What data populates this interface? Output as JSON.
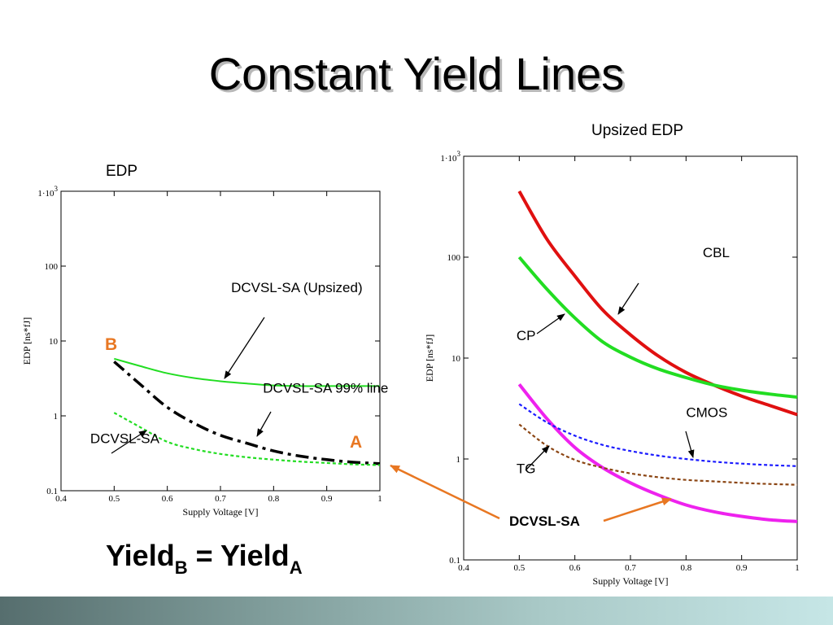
{
  "slide": {
    "title": "Constant Yield Lines",
    "equation": {
      "lhs": "Yield",
      "lhs_sub": "B",
      "op": " = ",
      "rhs": "Yield",
      "rhs_sub": "A"
    },
    "bottom_label": "DCVSL-SA",
    "colors": {
      "arrow": "#e87722",
      "footer_start": "#566e6e",
      "footer_end": "#c6e6e6"
    }
  },
  "chart_data": [
    {
      "type": "line",
      "caption": "EDP",
      "xlabel": "Supply Voltage [V]",
      "ylabel": "EDP [ns*fJ]",
      "xlim": [
        0.4,
        1.0
      ],
      "ylim": [
        0.1,
        1000
      ],
      "yscale": "log",
      "xticks": [
        "0.4",
        "0.5",
        "0.6",
        "0.7",
        "0.8",
        "0.9",
        "1"
      ],
      "yticks": [
        {
          "label": "0.1",
          "value": 0.1
        },
        {
          "label": "1",
          "value": 1
        },
        {
          "label": "10",
          "value": 10
        },
        {
          "label": "100",
          "value": 100
        },
        {
          "label": "1·10",
          "sup": "3",
          "value": 1000
        }
      ],
      "series": [
        {
          "id": "upsized",
          "color": "#22dd22",
          "style": "solid",
          "x": [
            0.5,
            0.55,
            0.6,
            0.65,
            0.7,
            0.75,
            0.8,
            0.85,
            0.9,
            0.95,
            1.0
          ],
          "y": [
            5.8,
            4.6,
            3.7,
            3.2,
            2.9,
            2.7,
            2.55,
            2.5,
            2.5,
            2.5,
            2.5
          ]
        },
        {
          "id": "line99",
          "color": "#000000",
          "style": "dashdot",
          "x": [
            0.5,
            0.55,
            0.6,
            0.65,
            0.7,
            0.75,
            0.8,
            0.85,
            0.9,
            0.95,
            1.0
          ],
          "y": [
            5.3,
            2.6,
            1.3,
            0.8,
            0.55,
            0.43,
            0.34,
            0.29,
            0.26,
            0.24,
            0.23
          ]
        },
        {
          "id": "base",
          "color": "#22dd22",
          "style": "dotted",
          "x": [
            0.5,
            0.55,
            0.6,
            0.65,
            0.7,
            0.75,
            0.8,
            0.85,
            0.9,
            0.95,
            1.0
          ],
          "y": [
            1.1,
            0.7,
            0.45,
            0.36,
            0.31,
            0.28,
            0.26,
            0.245,
            0.235,
            0.225,
            0.22
          ]
        }
      ],
      "annotations": [
        {
          "text": "DCVSL-SA (Upsized)",
          "x": 0.72,
          "y": 45
        },
        {
          "text": "DCVSL-SA 99% line",
          "x": 0.78,
          "y": 2.05
        },
        {
          "text": "DCVSL-SA",
          "x": 0.455,
          "y": 0.43
        }
      ],
      "points": [
        {
          "label": "B",
          "x": 0.5,
          "y": 5.3
        },
        {
          "label": "A",
          "x": 1.0,
          "y": 0.23
        }
      ]
    },
    {
      "type": "line",
      "caption": "Upsized EDP",
      "xlabel": "Supply Voltage [V]",
      "ylabel": "EDP [ns*fJ]",
      "xlim": [
        0.4,
        1.0
      ],
      "ylim": [
        0.1,
        1000
      ],
      "yscale": "log",
      "xticks": [
        "0.4",
        "0.5",
        "0.6",
        "0.7",
        "0.8",
        "0.9",
        "1"
      ],
      "yticks": [
        {
          "label": "0.1",
          "value": 0.1
        },
        {
          "label": "1",
          "value": 1
        },
        {
          "label": "10",
          "value": 10
        },
        {
          "label": "100",
          "value": 100
        },
        {
          "label": "1·10",
          "sup": "3",
          "value": 1000
        }
      ],
      "series": [
        {
          "id": "CBL",
          "color": "#e01010",
          "style": "solid",
          "x": [
            0.5,
            0.55,
            0.6,
            0.65,
            0.7,
            0.75,
            0.8,
            0.85,
            0.9,
            0.95,
            1.0
          ],
          "y": [
            450,
            150,
            65,
            30,
            17,
            10.5,
            7.2,
            5.4,
            4.2,
            3.4,
            2.75
          ]
        },
        {
          "id": "CP",
          "color": "#22dd22",
          "style": "solid",
          "x": [
            0.5,
            0.55,
            0.6,
            0.65,
            0.7,
            0.75,
            0.8,
            0.85,
            0.9,
            0.95,
            1.0
          ],
          "y": [
            100,
            48,
            25,
            14.5,
            10.2,
            7.8,
            6.4,
            5.4,
            4.8,
            4.4,
            4.1
          ]
        },
        {
          "id": "TG",
          "color": "#ee22ee",
          "style": "solid",
          "x": [
            0.5,
            0.55,
            0.6,
            0.65,
            0.7,
            0.75,
            0.8,
            0.85,
            0.9,
            0.95,
            1.0
          ],
          "y": [
            5.5,
            2.5,
            1.3,
            0.82,
            0.58,
            0.44,
            0.35,
            0.3,
            0.27,
            0.25,
            0.24
          ]
        },
        {
          "id": "CMOS",
          "color": "#1a1aff",
          "style": "dotted",
          "x": [
            0.5,
            0.55,
            0.6,
            0.65,
            0.7,
            0.75,
            0.8,
            0.85,
            0.9,
            0.95,
            1.0
          ],
          "y": [
            3.5,
            2.3,
            1.7,
            1.38,
            1.2,
            1.08,
            1.0,
            0.94,
            0.9,
            0.87,
            0.85
          ]
        },
        {
          "id": "brown",
          "color": "#8b4513",
          "style": "dotted",
          "x": [
            0.5,
            0.55,
            0.6,
            0.65,
            0.7,
            0.75,
            0.8,
            0.85,
            0.9,
            0.95,
            1.0
          ],
          "y": [
            2.2,
            1.35,
            0.98,
            0.82,
            0.72,
            0.66,
            0.62,
            0.6,
            0.58,
            0.565,
            0.555
          ]
        }
      ],
      "annotations": [
        {
          "text": "CBL",
          "x": 0.83,
          "y": 100
        },
        {
          "text": "CP",
          "x": 0.495,
          "y": 15
        },
        {
          "text": "CMOS",
          "x": 0.8,
          "y": 2.6
        },
        {
          "text": "TG",
          "x": 0.495,
          "y": 0.72
        }
      ]
    }
  ]
}
